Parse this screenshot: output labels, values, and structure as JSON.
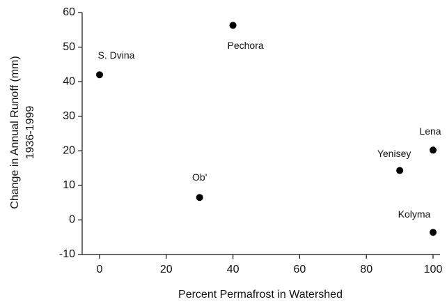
{
  "chart_data": {
    "type": "scatter",
    "xlabel": "Percent Permafrost in Watershed",
    "ylabel": [
      "Change in Annual Runoff (mm)",
      "1936-1999"
    ],
    "series": [
      {
        "labels": [
          "S. Dvina",
          "Pechora",
          "Ob'",
          "Yenisey",
          "Lena",
          "Kolyma"
        ],
        "color": "#000000",
        "x": [
          0,
          40,
          30,
          90,
          100,
          100
        ],
        "values": [
          42,
          56.3,
          6.5,
          14.3,
          20.2,
          -3.6
        ]
      }
    ],
    "xlim": [
      0,
      100
    ],
    "xticks": [
      0,
      20,
      40,
      60,
      80,
      100
    ],
    "ylim": [
      -10,
      60
    ],
    "yticks": [
      -10,
      0,
      10,
      20,
      30,
      40,
      50,
      60
    ]
  }
}
